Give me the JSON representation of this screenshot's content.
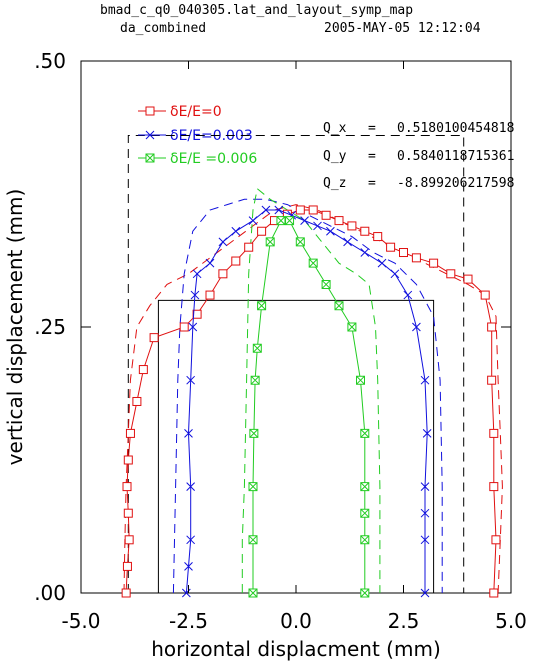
{
  "header": {
    "file": "bmad_c_q0_040305.lat_and_layout_symp_map",
    "plot_name": "da_combined",
    "timestamp": "2005-MAY-05  12:12:04"
  },
  "chart_data": {
    "type": "line",
    "xlabel": "horizontal displacment (mm)",
    "ylabel": "vertical displacement (mm)",
    "xlim": [
      -5.0,
      5.0
    ],
    "ylim": [
      0.0,
      0.5
    ],
    "x_ticks": [
      "-5.0",
      "-2.5",
      "0.0",
      "2.5",
      "5.0"
    ],
    "y_ticks": [
      ".00",
      ".25",
      ".50"
    ],
    "legend_position": "top-left",
    "annotations": [
      {
        "label": "Q_x",
        "eq": "=",
        "value": "0.5180100454818"
      },
      {
        "label": "Q_y",
        "eq": "=",
        "value": "0.5840118715361"
      },
      {
        "label": "Q_z",
        "eq": "=",
        "value": "-8.899206217598"
      }
    ],
    "series": [
      {
        "name": "δE/E=0",
        "color": "#e01010",
        "marker": "square",
        "x": [
          -3.95,
          -3.92,
          -3.88,
          -3.9,
          -3.93,
          -3.9,
          -3.85,
          -3.7,
          -3.55,
          -3.3,
          -2.6,
          -2.3,
          -2.0,
          -1.7,
          -1.4,
          -1.1,
          -0.8,
          -0.5,
          -0.2,
          0.1,
          0.4,
          0.7,
          1.0,
          1.3,
          1.6,
          1.9,
          2.2,
          2.5,
          2.8,
          3.2,
          3.6,
          4.0,
          4.4,
          4.55,
          4.55,
          4.6,
          4.6,
          4.65,
          4.6
        ],
        "y": [
          0.0,
          0.025,
          0.05,
          0.075,
          0.1,
          0.125,
          0.15,
          0.18,
          0.21,
          0.24,
          0.25,
          0.262,
          0.28,
          0.3,
          0.312,
          0.325,
          0.34,
          0.35,
          0.356,
          0.36,
          0.36,
          0.355,
          0.35,
          0.345,
          0.34,
          0.335,
          0.325,
          0.32,
          0.315,
          0.31,
          0.3,
          0.295,
          0.28,
          0.25,
          0.2,
          0.15,
          0.1,
          0.05,
          0.0
        ]
      },
      {
        "name": "δE/E=0.003",
        "color": "#1010dd",
        "marker": "x",
        "x": [
          -2.55,
          -2.5,
          -2.45,
          -2.45,
          -2.5,
          -2.45,
          -2.4,
          -2.35,
          -2.3,
          -2.0,
          -1.7,
          -1.4,
          -1.0,
          -0.7,
          -0.4,
          -0.1,
          0.2,
          0.5,
          0.8,
          1.2,
          1.6,
          2.0,
          2.3,
          2.6,
          2.8,
          3.0,
          3.05,
          3.0,
          3.0,
          3.0,
          3.0
        ],
        "y": [
          0.0,
          0.025,
          0.05,
          0.1,
          0.15,
          0.2,
          0.25,
          0.28,
          0.3,
          0.31,
          0.33,
          0.34,
          0.35,
          0.36,
          0.36,
          0.355,
          0.35,
          0.345,
          0.34,
          0.33,
          0.32,
          0.31,
          0.3,
          0.28,
          0.25,
          0.2,
          0.15,
          0.1,
          0.075,
          0.05,
          0.0
        ]
      },
      {
        "name": "δE/E =0.006",
        "color": "#22cc22",
        "marker": "boxx",
        "x": [
          -1.0,
          -1.0,
          -1.0,
          -0.98,
          -0.95,
          -0.9,
          -0.8,
          -0.6,
          -0.35,
          -0.15,
          0.1,
          0.4,
          0.7,
          1.0,
          1.3,
          1.5,
          1.6,
          1.6,
          1.6,
          1.6,
          1.6
        ],
        "y": [
          0.0,
          0.05,
          0.1,
          0.15,
          0.2,
          0.23,
          0.27,
          0.33,
          0.35,
          0.35,
          0.33,
          0.31,
          0.29,
          0.27,
          0.25,
          0.2,
          0.15,
          0.1,
          0.075,
          0.05,
          0.0
        ]
      }
    ],
    "dashed_curves": [
      {
        "color": "#e01010",
        "x": [
          -4.0,
          -3.98,
          -3.95,
          -3.9,
          -3.85,
          -3.7,
          -3.4,
          -3.0,
          -2.5,
          -2.0,
          -1.5,
          -1.0,
          -0.5,
          0.0,
          0.5,
          1.0,
          1.5,
          2.0,
          2.5,
          3.0,
          3.5,
          4.0,
          4.4,
          4.65,
          4.7,
          4.75,
          4.8,
          4.75,
          4.7
        ],
        "y": [
          0.0,
          0.05,
          0.1,
          0.15,
          0.2,
          0.25,
          0.27,
          0.29,
          0.3,
          0.315,
          0.33,
          0.345,
          0.36,
          0.365,
          0.36,
          0.35,
          0.34,
          0.33,
          0.32,
          0.31,
          0.3,
          0.29,
          0.28,
          0.26,
          0.2,
          0.15,
          0.1,
          0.05,
          0.0
        ]
      },
      {
        "color": "#1010dd",
        "x": [
          -2.85,
          -2.8,
          -2.75,
          -2.7,
          -2.6,
          -2.4,
          -2.0,
          -1.6,
          -1.2,
          -0.7,
          -0.2,
          0.3,
          0.8,
          1.3,
          1.8,
          2.3,
          2.8,
          3.2,
          3.35,
          3.4,
          3.4,
          3.4
        ],
        "y": [
          0.0,
          0.1,
          0.2,
          0.25,
          0.3,
          0.34,
          0.36,
          0.365,
          0.37,
          0.37,
          0.365,
          0.355,
          0.345,
          0.335,
          0.32,
          0.31,
          0.29,
          0.26,
          0.2,
          0.1,
          0.05,
          0.0
        ]
      },
      {
        "color": "#22cc22",
        "x": [
          -1.25,
          -1.25,
          -1.2,
          -1.15,
          -1.1,
          -1.0,
          -0.9,
          -0.6,
          -0.2,
          0.2,
          0.6,
          1.0,
          1.4,
          1.7,
          1.85,
          1.9,
          1.95,
          1.95
        ],
        "y": [
          0.0,
          0.05,
          0.1,
          0.2,
          0.3,
          0.36,
          0.38,
          0.37,
          0.36,
          0.35,
          0.33,
          0.31,
          0.3,
          0.29,
          0.25,
          0.2,
          0.1,
          0.0
        ]
      }
    ],
    "reference_boxes": [
      {
        "style": "dashed",
        "x": [
          -3.9,
          3.9
        ],
        "y": [
          0.0,
          0.43
        ]
      },
      {
        "style": "solid",
        "x": [
          -3.2,
          3.2
        ],
        "y": [
          0.0,
          0.275
        ]
      }
    ]
  }
}
